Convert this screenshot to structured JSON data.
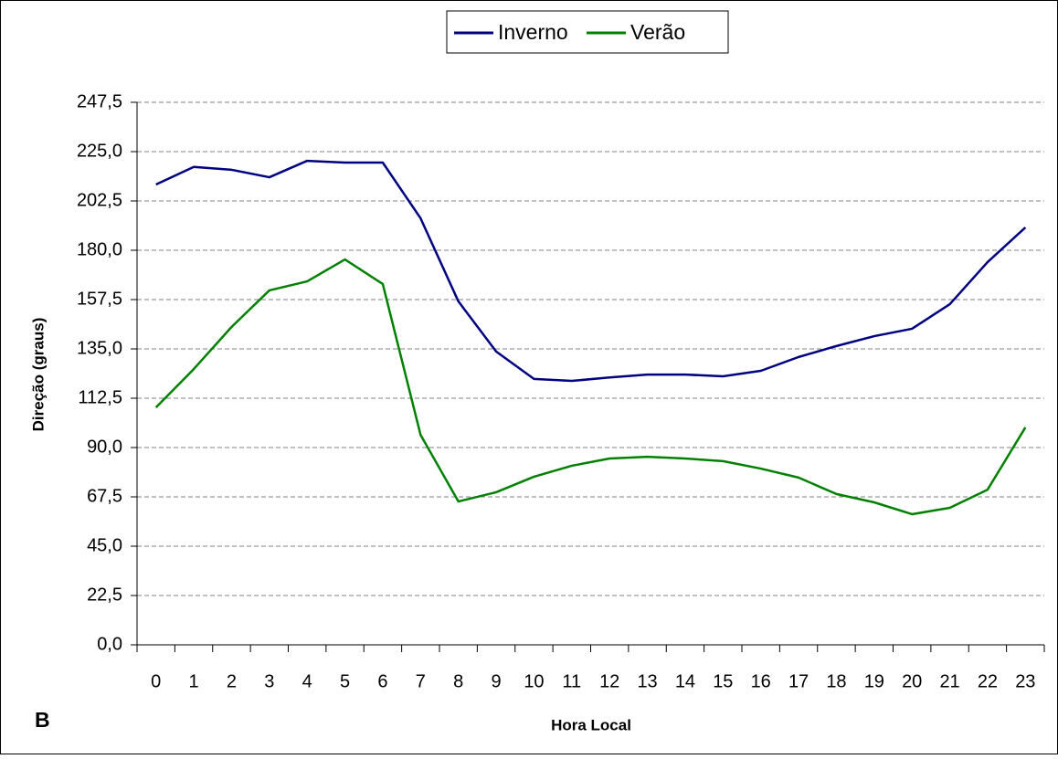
{
  "chart_data": {
    "type": "line",
    "x_label": "Hora Local",
    "y_label": "Direção (graus)",
    "panel_label": "B",
    "categories": [
      0,
      1,
      2,
      3,
      4,
      5,
      6,
      7,
      8,
      9,
      10,
      11,
      12,
      13,
      14,
      15,
      16,
      17,
      18,
      19,
      20,
      21,
      22,
      23
    ],
    "series": [
      {
        "name": "Inverno",
        "color": "#000080",
        "values": [
          210,
          218,
          216.7,
          213.3,
          220.8,
          220,
          220,
          194.6,
          156.7,
          133.8,
          121.3,
          120.4,
          122,
          123.3,
          123.3,
          122.5,
          125,
          131.3,
          136.3,
          140.8,
          144.2,
          155.4,
          174.6,
          190.4
        ]
      },
      {
        "name": "Verão",
        "color": "#008000",
        "values": [
          108.3,
          125.8,
          145,
          161.7,
          165.8,
          175.8,
          164.6,
          95.8,
          65.4,
          69.6,
          76.7,
          81.7,
          85,
          85.8,
          85,
          83.8,
          80.4,
          76.3,
          68.8,
          65,
          59.6,
          62.5,
          70.8,
          99.2
        ]
      }
    ],
    "ylim": [
      0,
      247.5
    ],
    "yticks": [
      {
        "value": 0,
        "label": "0,0"
      },
      {
        "value": 22.5,
        "label": "22,5"
      },
      {
        "value": 45,
        "label": "45,0"
      },
      {
        "value": 67.5,
        "label": "67,5"
      },
      {
        "value": 90,
        "label": "90,0"
      },
      {
        "value": 112.5,
        "label": "112,5"
      },
      {
        "value": 135,
        "label": "135,0"
      },
      {
        "value": 157.5,
        "label": "157,5"
      },
      {
        "value": 180,
        "label": "180,0"
      },
      {
        "value": 202.5,
        "label": "202,5"
      },
      {
        "value": 225,
        "label": "225,0"
      },
      {
        "value": 247.5,
        "label": "247,5"
      }
    ],
    "grid": true
  }
}
